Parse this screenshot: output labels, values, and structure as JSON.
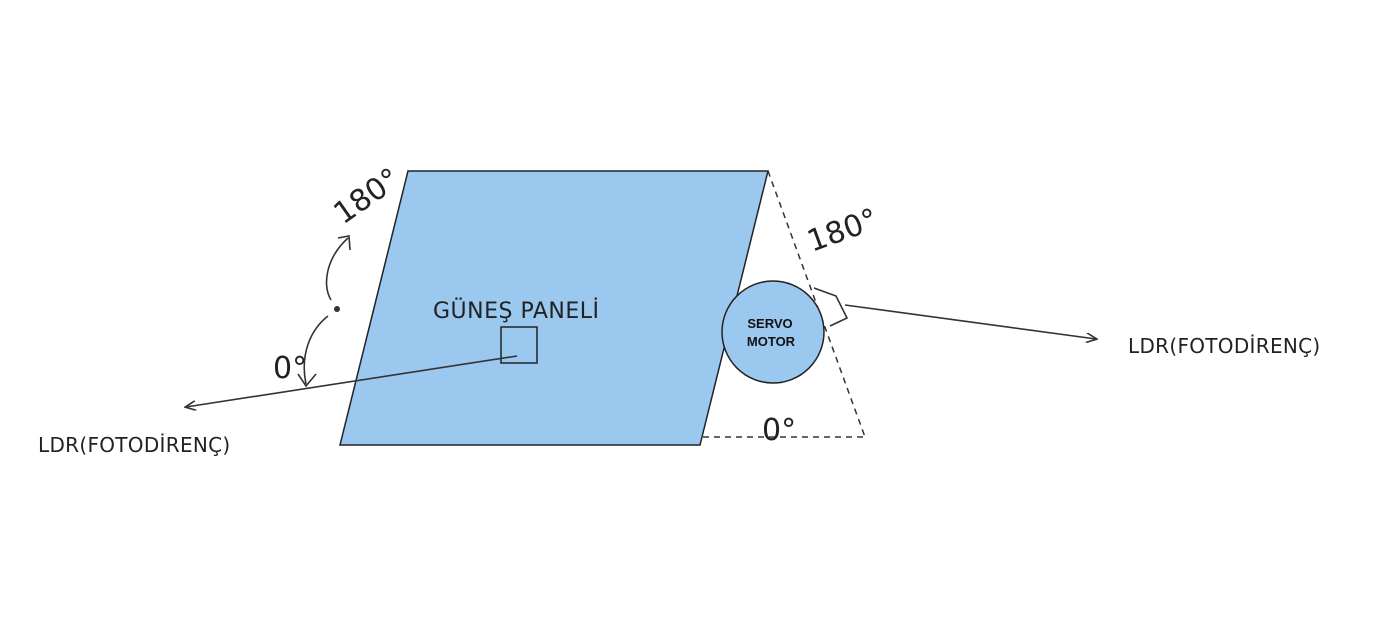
{
  "colors": {
    "panel_fill": "#9bc8ee",
    "servo_fill": "#9bc8ee",
    "outline": "#222222"
  },
  "labels": {
    "panel": "GÜNEŞ PANELİ",
    "servo_line1": "SERVO",
    "servo_line2": "MOTOR",
    "ldr_left": "LDR(FOTODİRENÇ)",
    "ldr_right": "LDR(FOTODİRENÇ)",
    "angle_left_top": "180°",
    "angle_left_bottom": "0°",
    "angle_right_top": "180°",
    "angle_right_bottom": "0°"
  }
}
